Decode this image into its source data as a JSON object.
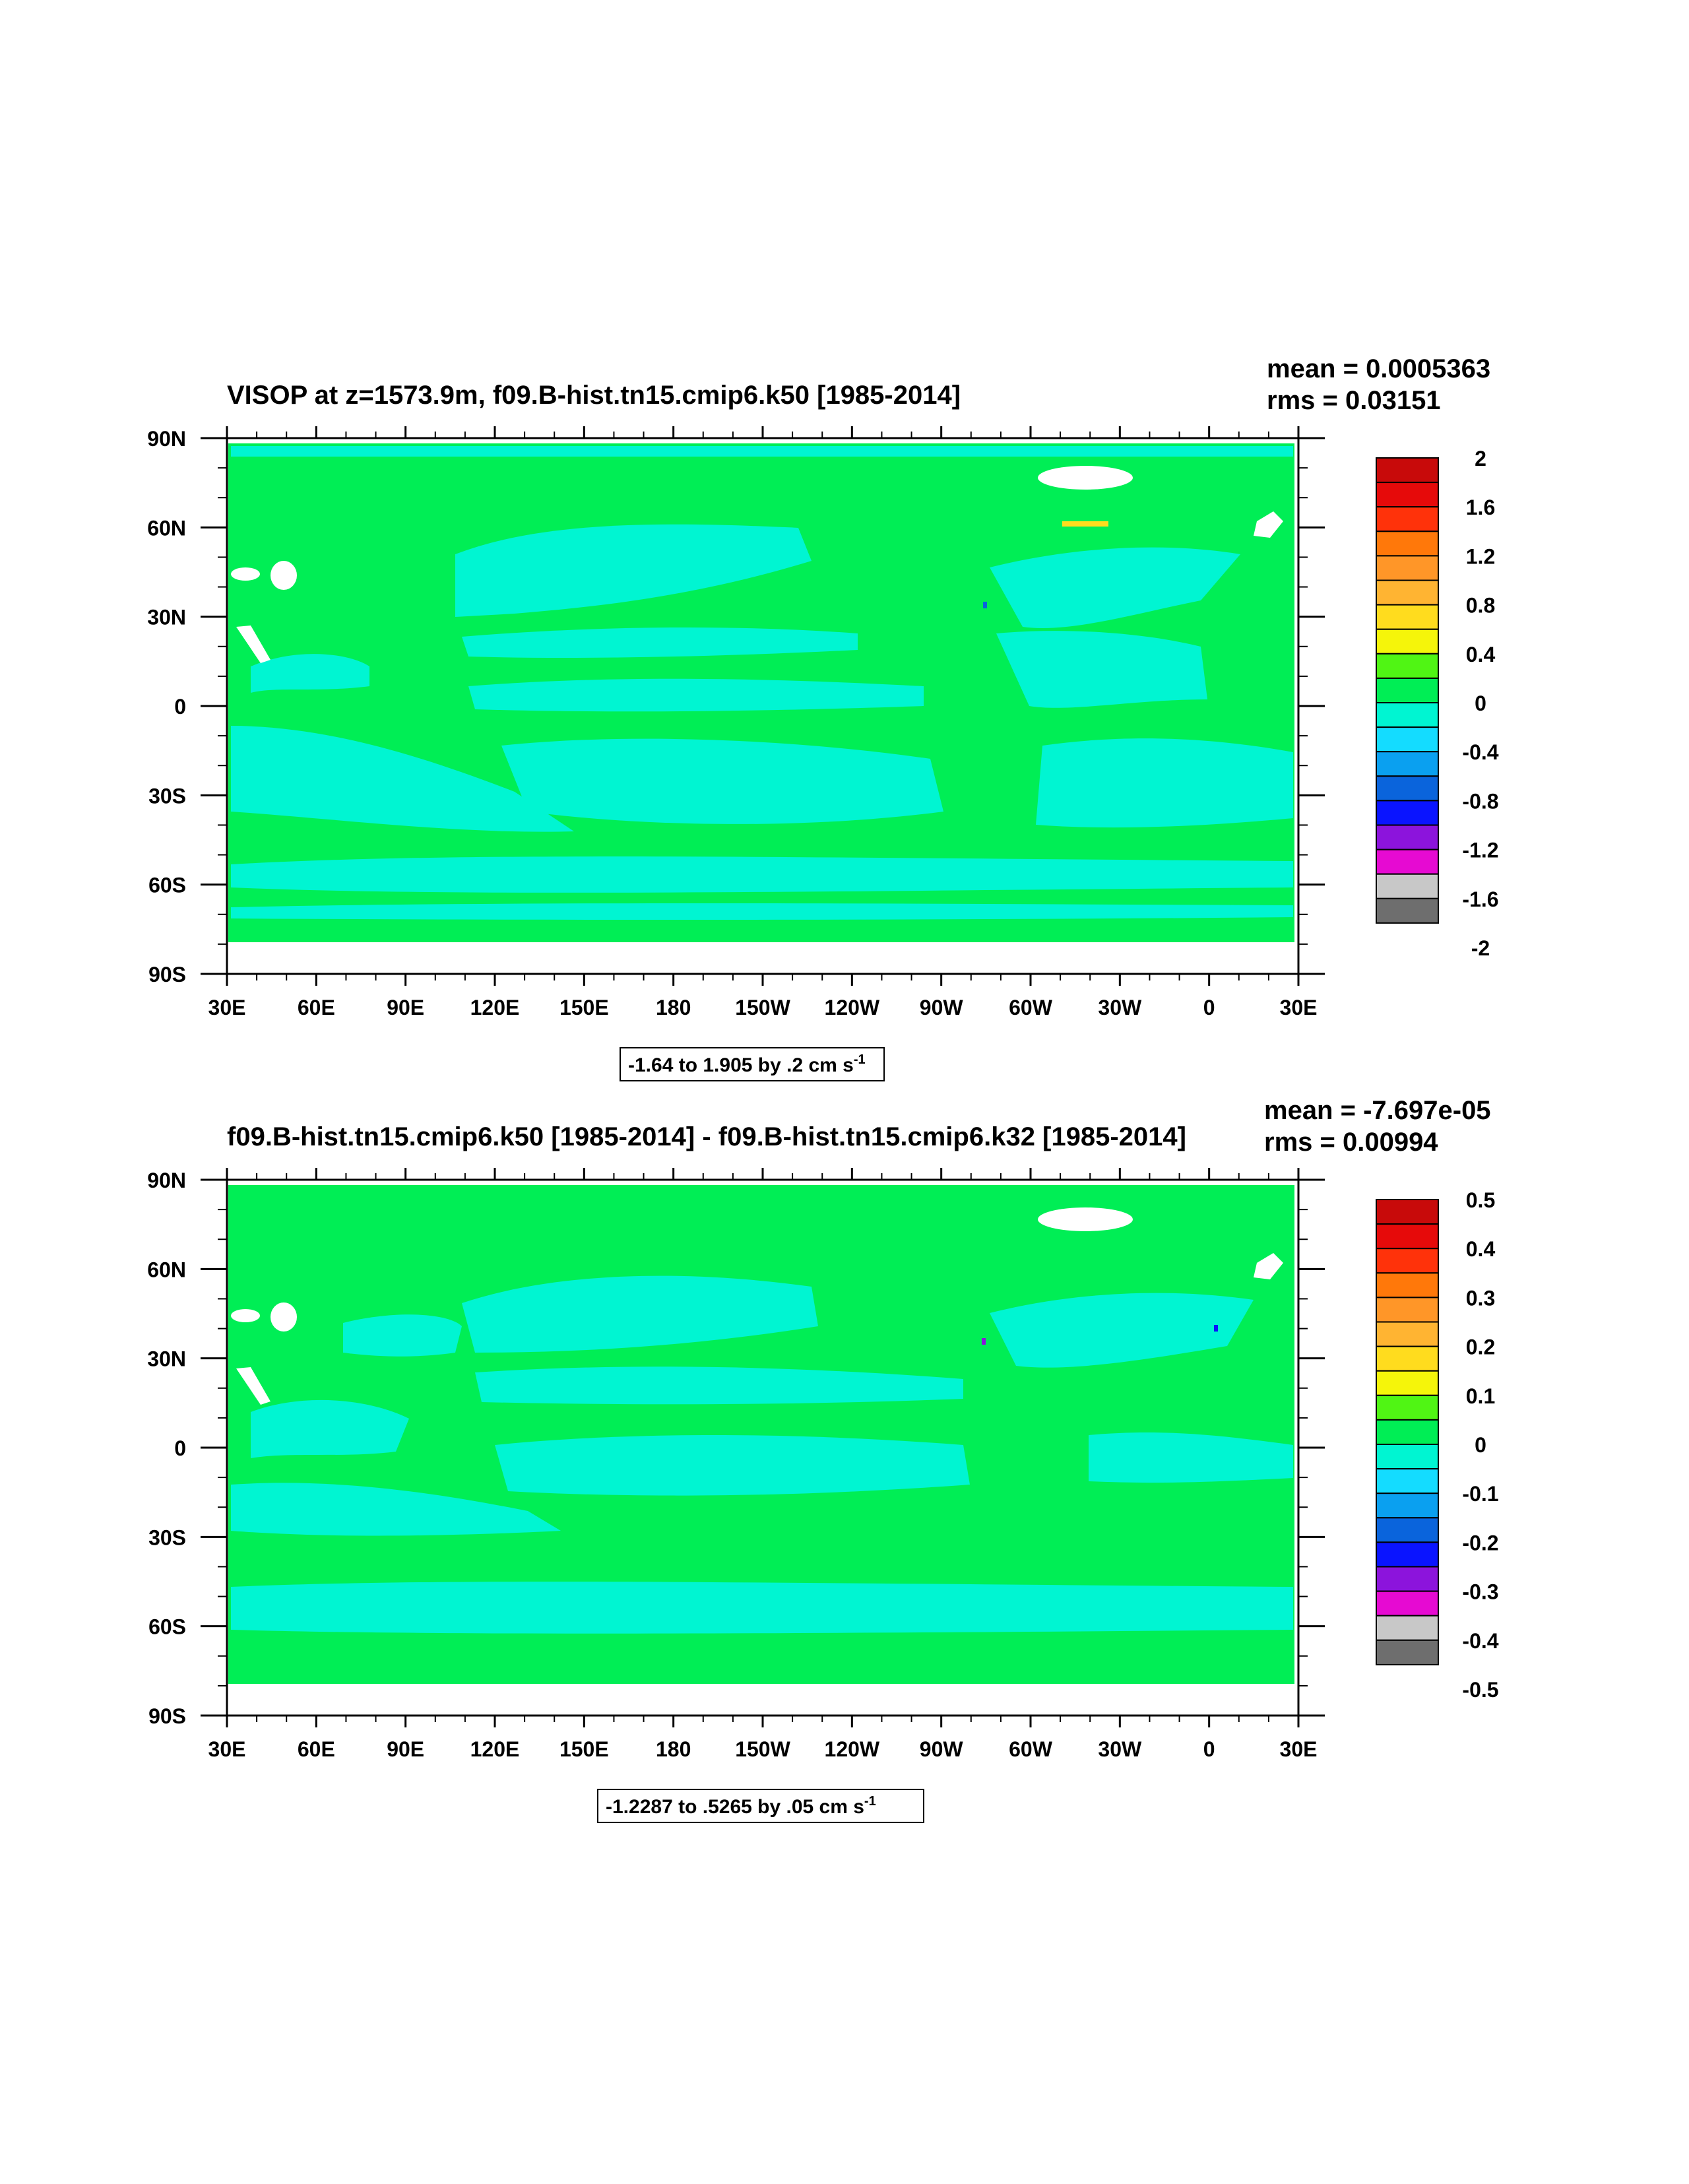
{
  "colors": {
    "land": "#ffffff",
    "ocean_zero": "#00ee55",
    "ocean_neg": "#00f5d2",
    "sea_ice_white": "#ffffff"
  },
  "palette": [
    "#6e6e6e",
    "#c8c8c8",
    "#e60ad2",
    "#8c14dc",
    "#0a14ff",
    "#0a64dc",
    "#0aa0f0",
    "#14dcff",
    "#00f5d2",
    "#00ee55",
    "#50f514",
    "#f5f50a",
    "#ffdc1e",
    "#ffb432",
    "#ff9628",
    "#ff780a",
    "#ff320a",
    "#e60a0a",
    "#c80a0a"
  ],
  "chart_data": [
    {
      "type": "heatmap",
      "title": "VISOP at z=1573.9m, f09.B-hist.tn15.cmip6.k50 [1985-2014]",
      "mean_text": "mean = 0.0005363",
      "rms_text": "rms = 0.03151",
      "range_text": "-1.64 to 1.905 by .2 cm s",
      "range_sup": "-1",
      "xticks": [
        "30E",
        "60E",
        "90E",
        "120E",
        "150E",
        "180",
        "150W",
        "120W",
        "90W",
        "60W",
        "30W",
        "0",
        "30E"
      ],
      "yticks": [
        "90N",
        "60N",
        "30N",
        "0",
        "30S",
        "60S",
        "90S"
      ],
      "xlim": [
        30,
        390
      ],
      "ylim": [
        -90,
        90
      ],
      "colorbar_labels": [
        "2",
        "1.6",
        "1.2",
        "0.8",
        "0.4",
        "0",
        "-0.4",
        "-0.8",
        "-1.2",
        "-1.6",
        "-2"
      ],
      "colorbar_levels": [
        -2,
        2
      ]
    },
    {
      "type": "heatmap",
      "title": "f09.B-hist.tn15.cmip6.k50 [1985-2014] - f09.B-hist.tn15.cmip6.k32 [1985-2014]",
      "mean_text": "mean = -7.697e-05",
      "rms_text": "rms = 0.00994",
      "range_text": "-1.2287 to .5265 by .05 cm s",
      "range_sup": "-1",
      "xticks": [
        "30E",
        "60E",
        "90E",
        "120E",
        "150E",
        "180",
        "150W",
        "120W",
        "90W",
        "60W",
        "30W",
        "0",
        "30E"
      ],
      "yticks": [
        "90N",
        "60N",
        "30N",
        "0",
        "30S",
        "60S",
        "90S"
      ],
      "xlim": [
        30,
        390
      ],
      "ylim": [
        -90,
        90
      ],
      "colorbar_labels": [
        "0.5",
        "0.4",
        "0.3",
        "0.2",
        "0.1",
        "0",
        "-0.1",
        "-0.2",
        "-0.3",
        "-0.4",
        "-0.5"
      ],
      "colorbar_levels": [
        -0.5,
        0.5
      ]
    }
  ]
}
